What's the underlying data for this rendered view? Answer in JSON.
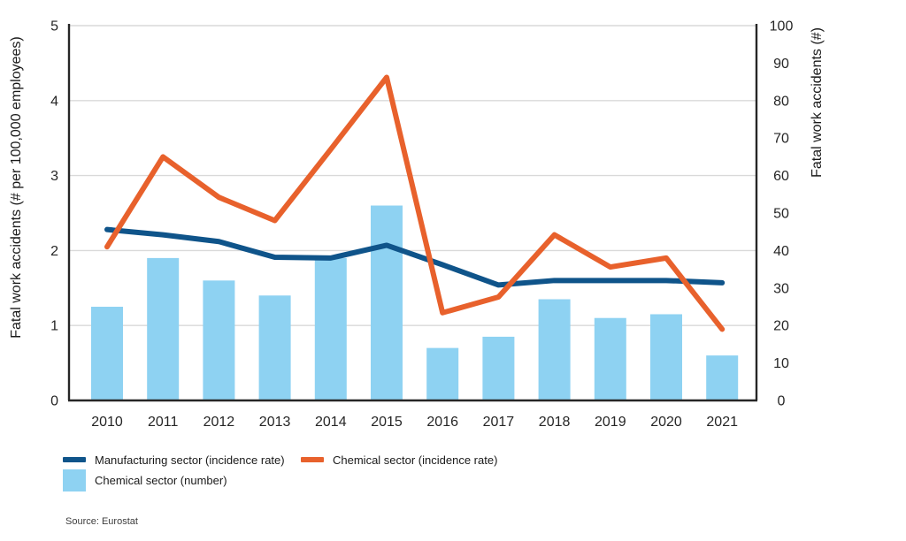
{
  "figure": {
    "source": "Source: Eurostat"
  },
  "chart_data": {
    "type": "combo",
    "categories": [
      "2010",
      "2011",
      "2012",
      "2013",
      "2014",
      "2015",
      "2016",
      "2017",
      "2018",
      "2019",
      "2020",
      "2021"
    ],
    "series": [
      {
        "name": "Chemical sector (number)",
        "type": "bar",
        "axis": "right",
        "color": "#8ED2F2",
        "values": [
          25,
          38,
          32,
          28,
          38,
          52,
          14,
          17,
          27,
          22,
          23,
          12
        ]
      },
      {
        "name": "Manufacturing sector (incidence rate)",
        "type": "line",
        "axis": "left",
        "color": "#0F548A",
        "values": [
          2.28,
          2.21,
          2.12,
          1.91,
          1.9,
          2.07,
          1.81,
          1.54,
          1.6,
          1.6,
          1.6,
          1.57
        ]
      },
      {
        "name": "Chemical sector (incidence rate)",
        "type": "line",
        "axis": "left",
        "color": "#E8612C",
        "values": [
          2.05,
          3.25,
          2.71,
          2.4,
          3.35,
          4.31,
          1.17,
          1.38,
          2.21,
          1.78,
          1.9,
          0.95
        ]
      }
    ],
    "left_axis": {
      "label": "Fatal work accidents (# per 100,000 employees)",
      "min": 0,
      "max": 5,
      "ticks": [
        0,
        1,
        2,
        3,
        4,
        5
      ]
    },
    "right_axis": {
      "label": "Fatal work accidents (#)",
      "min": 0,
      "max": 100,
      "ticks": [
        0,
        10,
        20,
        30,
        40,
        50,
        60,
        70,
        80,
        90,
        100
      ]
    },
    "grid": "horizontal",
    "legend_position": "bottom-left",
    "colors": {
      "grid": "#D9D9D9",
      "axis": "#262626",
      "tick_text": "#262626"
    }
  },
  "legend": {
    "items": [
      {
        "label": "Manufacturing sector (incidence rate)",
        "swatch": "line",
        "color": "#0F548A"
      },
      {
        "label": "Chemical sector (incidence rate)",
        "swatch": "line",
        "color": "#E8612C"
      },
      {
        "label": "Chemical sector (number)",
        "swatch": "square",
        "color": "#8ED2F2"
      }
    ]
  }
}
